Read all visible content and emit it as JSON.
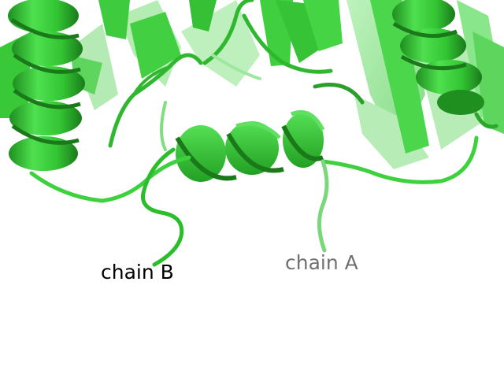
{
  "labels": {
    "chain_b": "chain B",
    "chain_a": "chain A"
  },
  "colors": {
    "background": "#ffffff",
    "ribbon": "#3ed13e",
    "ribbon_light": "#8fe88f",
    "ribbon_dark": "#1f8f1f",
    "label_chain_b": "#000000",
    "label_chain_a": "#707070"
  }
}
